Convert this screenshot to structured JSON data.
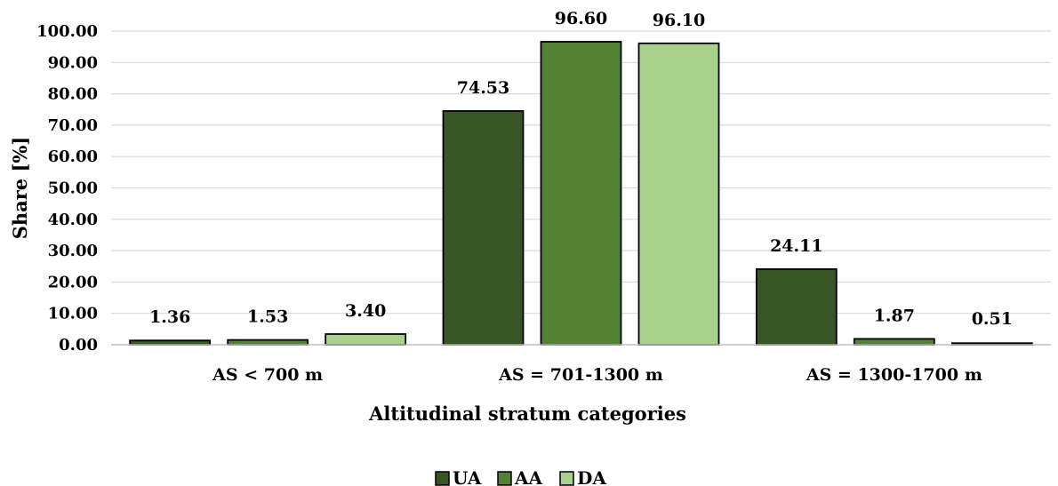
{
  "chart_data": {
    "type": "bar",
    "title": "",
    "xlabel": "Altitudinal stratum categories",
    "ylabel": "Share [%]",
    "ylim": [
      0,
      100
    ],
    "ytick_step": 10,
    "ytick_decimals": 2,
    "grid": true,
    "legend_position": "bottom",
    "categories": [
      "AS < 700 m",
      "AS = 701-1300 m",
      "AS = 1300-1700 m"
    ],
    "series": [
      {
        "name": "UA",
        "color": "#375623",
        "values": [
          1.36,
          74.53,
          24.11
        ]
      },
      {
        "name": "AA",
        "color": "#548235",
        "values": [
          1.53,
          96.6,
          1.87
        ]
      },
      {
        "name": "DA",
        "color": "#a9d18e",
        "values": [
          3.4,
          96.1,
          0.51
        ]
      }
    ],
    "data_labels": [
      [
        "1.36",
        "74.53",
        "24.11"
      ],
      [
        "1.53",
        "96.60",
        "1.87"
      ],
      [
        "3.40",
        "96.10",
        "0.51"
      ]
    ]
  }
}
